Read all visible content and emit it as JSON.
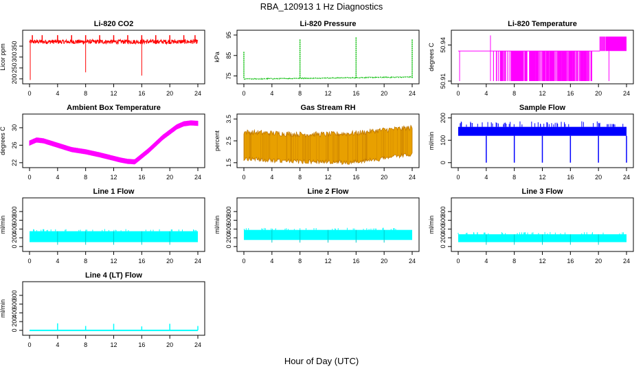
{
  "title": "RBA_120913 1 Hz Diagnostics",
  "xlabel": "Hour of Day (UTC)",
  "chart_data": [
    {
      "type": "line",
      "title": "Li-820 CO2",
      "ylabel": "Licor ppm",
      "color": "#ff0000",
      "xlim": [
        0,
        24
      ],
      "ylim": [
        190,
        410
      ],
      "xticks": [
        0,
        4,
        8,
        12,
        16,
        20,
        24
      ],
      "yticks": [
        200,
        250,
        300,
        350
      ],
      "baseline": [
        360,
        380
      ],
      "spikes_up": [
        {
          "x": 0.4,
          "y": 400
        },
        {
          "x": 1.8,
          "y": 400
        },
        {
          "x": 4,
          "y": 400
        },
        {
          "x": 6,
          "y": 400
        },
        {
          "x": 8,
          "y": 400
        },
        {
          "x": 10,
          "y": 400
        },
        {
          "x": 12,
          "y": 400
        },
        {
          "x": 14,
          "y": 400
        },
        {
          "x": 16,
          "y": 400
        },
        {
          "x": 18,
          "y": 400
        },
        {
          "x": 20,
          "y": 400
        },
        {
          "x": 22,
          "y": 400
        },
        {
          "x": 23.6,
          "y": 400
        }
      ],
      "spikes_down": [
        {
          "x": 0.1,
          "y": 195
        },
        {
          "x": 8,
          "y": 230
        },
        {
          "x": 16,
          "y": 215
        }
      ]
    },
    {
      "type": "line",
      "title": "Li-820 Pressure",
      "ylabel": "kPa",
      "color": "#00bb00",
      "xlim": [
        0,
        24
      ],
      "ylim": [
        72.5,
        96
      ],
      "xticks": [
        0,
        4,
        8,
        12,
        16,
        20,
        24
      ],
      "yticks": [
        75,
        85,
        95
      ],
      "baseline_start": 73.5,
      "baseline_end": 74.5,
      "spikes": [
        {
          "x": 0,
          "y": 87
        },
        {
          "x": 8,
          "y": 93
        },
        {
          "x": 16,
          "y": 94
        },
        {
          "x": 24,
          "y": 93
        }
      ]
    },
    {
      "type": "line",
      "title": "Li-820 Temperature",
      "ylabel": "degrees C",
      "color": "#ff00ff",
      "xlim": [
        0,
        24
      ],
      "ylim": [
        50.91,
        50.95
      ],
      "xticks": [
        0,
        4,
        8,
        12,
        16,
        20,
        24
      ],
      "yticks": [
        50.91,
        50.94
      ],
      "ytick_labels": [
        "50.91",
        "50.94"
      ],
      "level_mid": 50.935,
      "level_low": 50.91,
      "level_high": 50.945,
      "dense_low_range": [
        7.5,
        12.5
      ],
      "dense_low_range2": [
        13,
        18.5
      ],
      "high_range": [
        20.2,
        24
      ]
    },
    {
      "type": "line",
      "title": "Ambient Box Temperature",
      "ylabel": "degrees C",
      "color": "#ff00ff",
      "xlim": [
        0,
        24
      ],
      "ylim": [
        21.5,
        32.5
      ],
      "xticks": [
        0,
        4,
        8,
        12,
        16,
        20,
        24
      ],
      "yticks": [
        22,
        26,
        30
      ],
      "x": [
        0,
        1,
        2,
        3,
        4,
        6,
        8,
        10,
        12,
        13,
        14,
        15,
        16,
        17,
        18,
        19,
        20,
        21,
        22,
        23,
        24
      ],
      "y": [
        26.5,
        27.2,
        27.0,
        26.5,
        26.0,
        25.0,
        24.5,
        23.8,
        23.0,
        22.6,
        22.3,
        22.2,
        23.5,
        24.8,
        26.3,
        27.8,
        29.0,
        30.2,
        30.9,
        31.1,
        31.0
      ],
      "band": 0.5
    },
    {
      "type": "area",
      "title": "Gas Stream RH",
      "ylabel": "percent",
      "color": "#e8a000",
      "xlim": [
        0,
        24
      ],
      "ylim": [
        1.4,
        3.6
      ],
      "xticks": [
        0,
        4,
        8,
        12,
        16,
        20,
        24
      ],
      "yticks": [
        1.5,
        2.5,
        3.5
      ],
      "upper": [
        {
          "x": 0,
          "y": 2.9
        },
        {
          "x": 4,
          "y": 2.85
        },
        {
          "x": 8,
          "y": 2.8
        },
        {
          "x": 12,
          "y": 2.8
        },
        {
          "x": 16,
          "y": 2.85
        },
        {
          "x": 20,
          "y": 3.0
        },
        {
          "x": 24,
          "y": 3.1
        }
      ],
      "lower": [
        {
          "x": 0,
          "y": 1.7
        },
        {
          "x": 4,
          "y": 1.6
        },
        {
          "x": 8,
          "y": 1.55
        },
        {
          "x": 12,
          "y": 1.55
        },
        {
          "x": 15,
          "y": 1.5
        },
        {
          "x": 20,
          "y": 1.7
        },
        {
          "x": 24,
          "y": 1.9
        }
      ]
    },
    {
      "type": "line",
      "title": "Sample Flow",
      "ylabel": "ml/min",
      "color": "#0000ff",
      "xlim": [
        0,
        24
      ],
      "ylim": [
        -10,
        205
      ],
      "xticks": [
        0,
        4,
        8,
        12,
        16,
        20,
        24
      ],
      "yticks": [
        0,
        100,
        200
      ],
      "band": [
        120,
        160
      ],
      "spike_top": 185,
      "dips": [
        {
          "x": 4,
          "y": 0
        },
        {
          "x": 8,
          "y": 0
        },
        {
          "x": 12,
          "y": 0
        },
        {
          "x": 16,
          "y": 0
        },
        {
          "x": 20,
          "y": 0
        },
        {
          "x": 24,
          "y": 0
        }
      ]
    },
    {
      "type": "area",
      "title": "Line 1 Flow",
      "ylabel": "ml/min",
      "color": "#00ffff",
      "xlim": [
        0,
        24
      ],
      "ylim": [
        -50,
        1050
      ],
      "xticks": [
        0,
        4,
        8,
        12,
        16,
        20,
        24
      ],
      "yticks": [
        0,
        200,
        400,
        600,
        800
      ],
      "band": [
        100,
        350
      ]
    },
    {
      "type": "area",
      "title": "Line 2 Flow",
      "ylabel": "ml/min",
      "color": "#00ffff",
      "xlim": [
        0,
        24
      ],
      "ylim": [
        -50,
        1050
      ],
      "xticks": [
        0,
        4,
        8,
        12,
        16,
        20,
        24
      ],
      "yticks": [
        0,
        200,
        400,
        600,
        800
      ],
      "band": [
        150,
        380
      ]
    },
    {
      "type": "area",
      "title": "Line 3 Flow",
      "ylabel": "ml/min",
      "color": "#00ffff",
      "xlim": [
        0,
        24
      ],
      "ylim": [
        -50,
        1050
      ],
      "xticks": [
        0,
        4,
        8,
        12,
        16,
        20,
        24
      ],
      "yticks": [
        0,
        200,
        400,
        600,
        800
      ],
      "band": [
        100,
        280
      ]
    },
    {
      "type": "line",
      "title": "Line 4 (LT) Flow",
      "ylabel": "ml/min",
      "color": "#00ffff",
      "xlim": [
        0,
        24
      ],
      "ylim": [
        -50,
        1050
      ],
      "xticks": [
        0,
        4,
        8,
        12,
        16,
        20,
        24
      ],
      "yticks": [
        0,
        200,
        400,
        600,
        800
      ],
      "baseline": 0,
      "spikes": [
        {
          "x": 4,
          "y": 160
        },
        {
          "x": 8,
          "y": 100
        },
        {
          "x": 12,
          "y": 150
        },
        {
          "x": 16,
          "y": 90
        },
        {
          "x": 20,
          "y": 150
        },
        {
          "x": 24,
          "y": 100
        }
      ]
    }
  ]
}
